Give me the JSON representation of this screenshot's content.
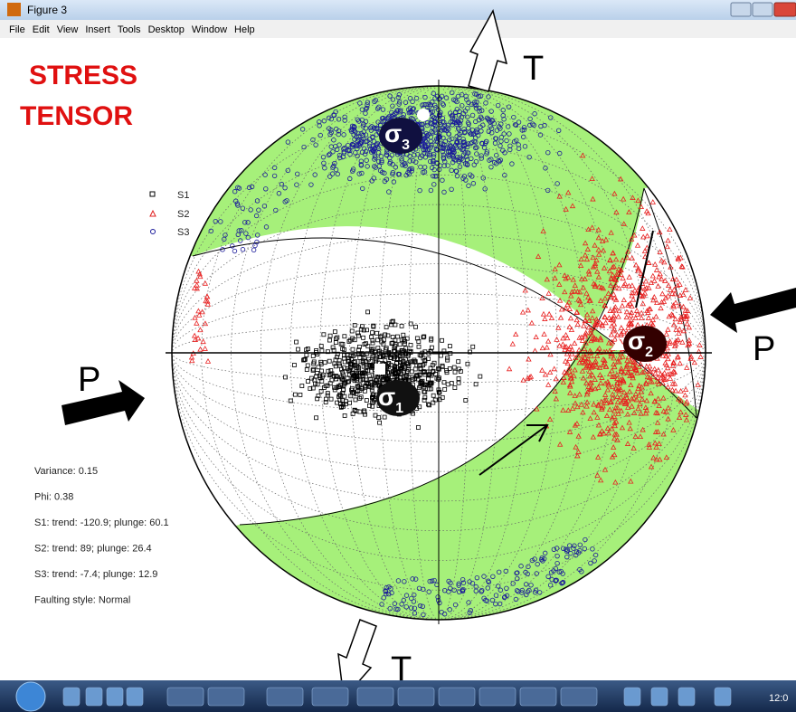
{
  "window": {
    "title": "Figure 3",
    "menu": [
      "File",
      "Edit",
      "View",
      "Insert",
      "Tools",
      "Desktop",
      "Window",
      "Help"
    ]
  },
  "figure": {
    "title_lines": [
      "STRESS",
      "TENSOR"
    ],
    "axis_labels": {
      "top": "T",
      "bottom": "T",
      "left": "P",
      "right": "P"
    },
    "sigma": [
      {
        "symbol": "σ",
        "index": "1"
      },
      {
        "symbol": "σ",
        "index": "2"
      },
      {
        "symbol": "σ",
        "index": "3"
      }
    ],
    "legend": [
      "S1",
      "S2",
      "S3"
    ],
    "stats": [
      "Variance: 0.15",
      "Phi: 0.38",
      "S1: trend: -120.9; plunge: 60.1",
      "S2: trend: 89; plunge: 26.4",
      "S3: trend: -7.4; plunge: 12.9",
      "Faulting style: Normal"
    ]
  },
  "taskbar": {
    "clock": "12:0"
  }
}
